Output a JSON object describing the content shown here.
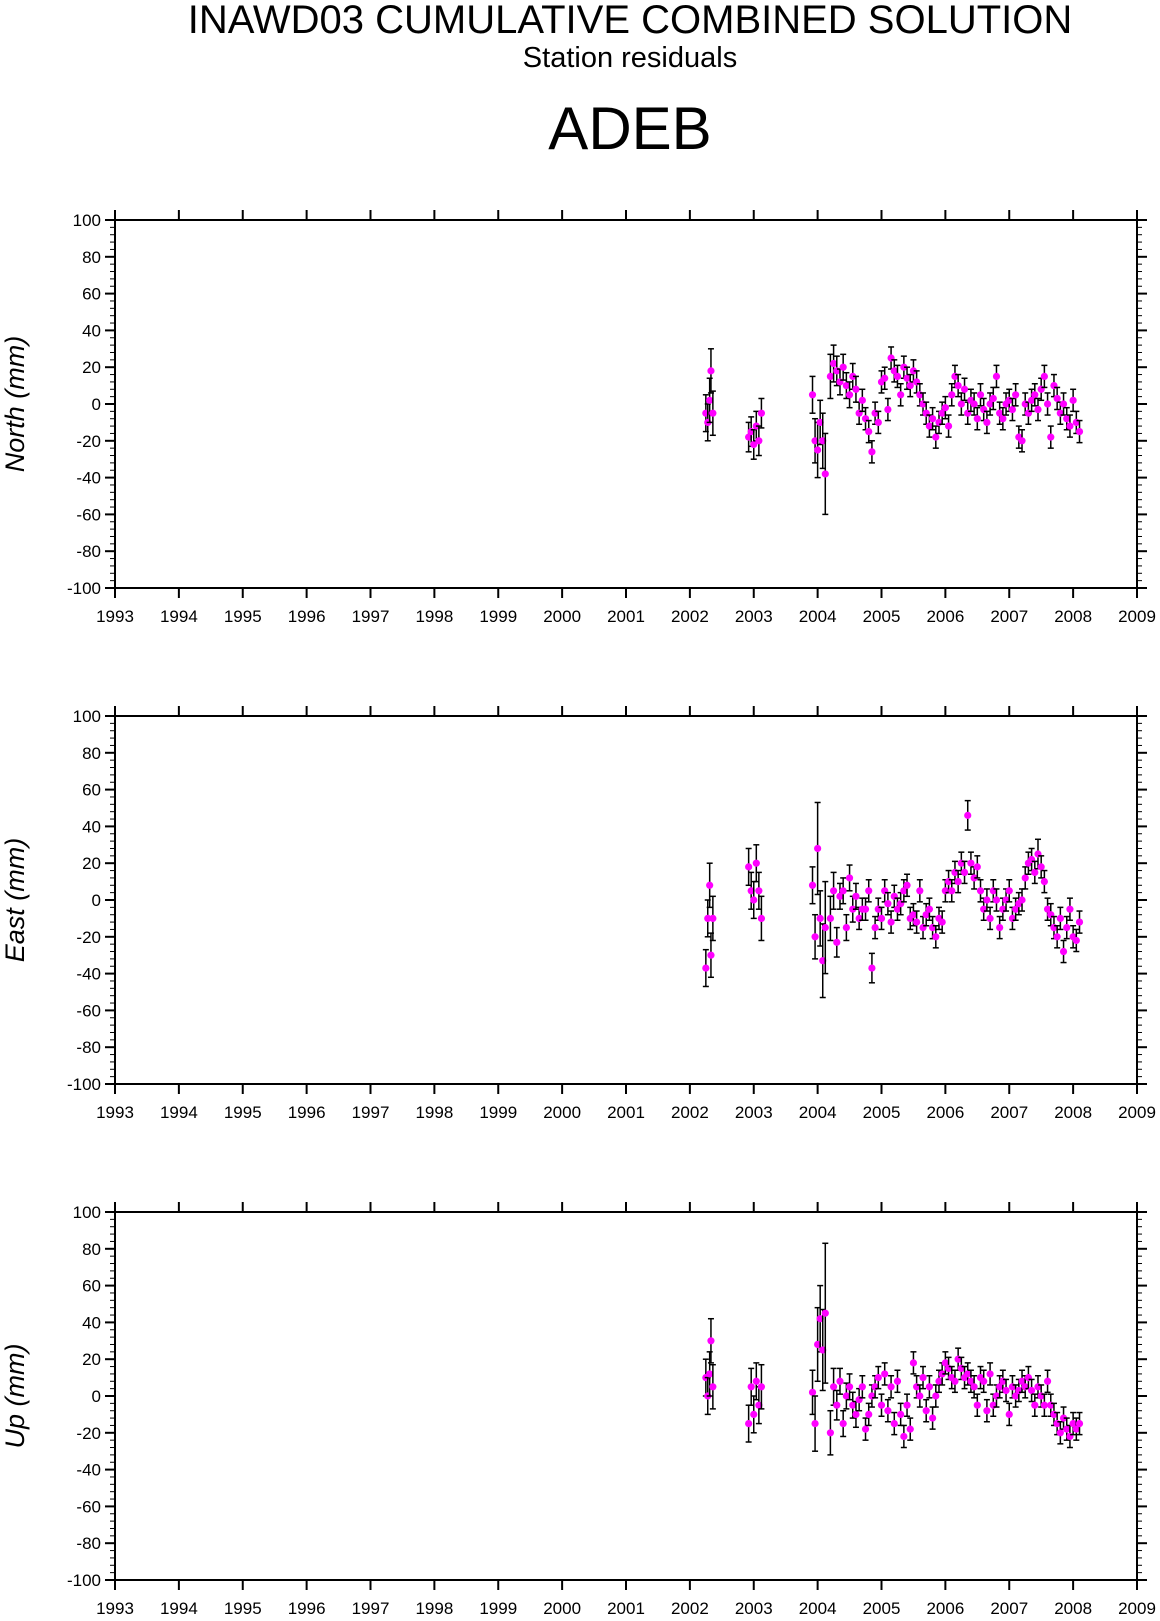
{
  "title": "INAWD03 CUMULATIVE COMBINED SOLUTION",
  "subtitle": "Station residuals",
  "station": "ADEB",
  "colors": {
    "marker": "#ff00ff",
    "errorbar": "#000000",
    "axis": "#000000"
  },
  "chart_data": [
    {
      "type": "scatter",
      "ylabel": "North (mm)",
      "xlim": [
        1993,
        2009
      ],
      "ylim": [
        -100,
        100
      ],
      "xticks": [
        "1993",
        "1994",
        "1995",
        "1996",
        "1997",
        "1998",
        "1999",
        "2000",
        "2001",
        "2002",
        "2003",
        "2004",
        "2005",
        "2006",
        "2007",
        "2008",
        "2009"
      ],
      "yticks": [
        "100",
        "80",
        "60",
        "40",
        "20",
        "0",
        "-20",
        "-40",
        "-60",
        "-80",
        "-100"
      ],
      "grid": false,
      "series": [
        {
          "x": [
            2002.25,
            2002.28,
            2002.31,
            2002.33,
            2002.36,
            2002.92,
            2002.96,
            2003.0,
            2003.04,
            2003.08,
            2003.12,
            2003.92,
            2003.96,
            2004.0,
            2004.04,
            2004.08,
            2004.12,
            2004.2,
            2004.25,
            2004.3,
            2004.35,
            2004.4,
            2004.45,
            2004.5,
            2004.55,
            2004.6,
            2004.65,
            2004.7,
            2004.75,
            2004.8,
            2004.85,
            2004.9,
            2004.95,
            2005.0,
            2005.05,
            2005.1,
            2005.15,
            2005.2,
            2005.25,
            2005.3,
            2005.35,
            2005.4,
            2005.45,
            2005.5,
            2005.55,
            2005.6,
            2005.65,
            2005.7,
            2005.75,
            2005.8,
            2005.85,
            2005.9,
            2005.95,
            2006.0,
            2006.05,
            2006.1,
            2006.15,
            2006.2,
            2006.25,
            2006.3,
            2006.35,
            2006.4,
            2006.45,
            2006.5,
            2006.55,
            2006.6,
            2006.65,
            2006.7,
            2006.75,
            2006.8,
            2006.85,
            2006.9,
            2006.95,
            2007.0,
            2007.05,
            2007.1,
            2007.15,
            2007.2,
            2007.25,
            2007.3,
            2007.35,
            2007.4,
            2007.45,
            2007.5,
            2007.55,
            2007.6,
            2007.65,
            2007.7,
            2007.75,
            2007.8,
            2007.85,
            2007.9,
            2007.95,
            2008.0,
            2008.05,
            2008.1
          ],
          "y": [
            -5,
            -10,
            2,
            18,
            -5,
            -18,
            -15,
            -22,
            -12,
            -20,
            -5,
            5,
            -20,
            -25,
            -10,
            -20,
            -38,
            15,
            22,
            18,
            12,
            20,
            10,
            5,
            15,
            8,
            -5,
            2,
            -8,
            -15,
            -26,
            -5,
            -10,
            12,
            14,
            -3,
            25,
            18,
            15,
            5,
            20,
            14,
            10,
            18,
            12,
            5,
            0,
            -5,
            -12,
            -8,
            -18,
            -10,
            -5,
            -2,
            -12,
            5,
            15,
            10,
            0,
            8,
            -5,
            2,
            0,
            -8,
            5,
            -3,
            -10,
            0,
            3,
            15,
            -5,
            -8,
            0,
            2,
            -3,
            5,
            -18,
            -20,
            0,
            -5,
            2,
            5,
            -3,
            8,
            15,
            0,
            -18,
            10,
            3,
            -5,
            0,
            -8,
            -12,
            2,
            -10,
            -15
          ],
          "yerr": [
            10,
            10,
            12,
            12,
            12,
            8,
            8,
            8,
            8,
            8,
            8,
            10,
            12,
            15,
            12,
            15,
            22,
            12,
            10,
            8,
            7,
            7,
            7,
            7,
            7,
            7,
            6,
            6,
            6,
            6,
            6,
            6,
            6,
            6,
            6,
            6,
            6,
            6,
            6,
            6,
            6,
            6,
            6,
            6,
            6,
            6,
            6,
            6,
            6,
            6,
            6,
            6,
            6,
            6,
            6,
            6,
            6,
            6,
            6,
            6,
            6,
            6,
            6,
            6,
            6,
            6,
            6,
            6,
            6,
            6,
            6,
            6,
            6,
            6,
            6,
            6,
            6,
            6,
            6,
            6,
            6,
            6,
            6,
            6,
            6,
            6,
            6,
            6,
            6,
            6,
            6,
            6,
            6,
            6,
            6,
            6
          ]
        }
      ]
    },
    {
      "type": "scatter",
      "ylabel": "East (mm)",
      "xlim": [
        1993,
        2009
      ],
      "ylim": [
        -100,
        100
      ],
      "xticks": [
        "1993",
        "1994",
        "1995",
        "1996",
        "1997",
        "1998",
        "1999",
        "2000",
        "2001",
        "2002",
        "2003",
        "2004",
        "2005",
        "2006",
        "2007",
        "2008",
        "2009"
      ],
      "yticks": [
        "100",
        "80",
        "60",
        "40",
        "20",
        "0",
        "-20",
        "-40",
        "-60",
        "-80",
        "-100"
      ],
      "grid": false,
      "series": [
        {
          "x": [
            2002.25,
            2002.28,
            2002.31,
            2002.33,
            2002.36,
            2002.92,
            2002.96,
            2003.0,
            2003.04,
            2003.08,
            2003.12,
            2003.92,
            2003.96,
            2004.0,
            2004.04,
            2004.08,
            2004.12,
            2004.2,
            2004.25,
            2004.3,
            2004.35,
            2004.4,
            2004.45,
            2004.5,
            2004.55,
            2004.6,
            2004.65,
            2004.7,
            2004.75,
            2004.8,
            2004.85,
            2004.9,
            2004.95,
            2005.0,
            2005.05,
            2005.1,
            2005.15,
            2005.2,
            2005.25,
            2005.3,
            2005.35,
            2005.4,
            2005.45,
            2005.5,
            2005.55,
            2005.6,
            2005.65,
            2005.7,
            2005.75,
            2005.8,
            2005.85,
            2005.9,
            2005.95,
            2006.0,
            2006.05,
            2006.1,
            2006.15,
            2006.2,
            2006.25,
            2006.3,
            2006.35,
            2006.4,
            2006.45,
            2006.5,
            2006.55,
            2006.6,
            2006.65,
            2006.7,
            2006.75,
            2006.8,
            2006.85,
            2006.9,
            2006.95,
            2007.0,
            2007.05,
            2007.1,
            2007.15,
            2007.2,
            2007.25,
            2007.3,
            2007.35,
            2007.4,
            2007.45,
            2007.5,
            2007.55,
            2007.6,
            2007.65,
            2007.7,
            2007.75,
            2007.8,
            2007.85,
            2007.9,
            2007.95,
            2008.0,
            2008.05,
            2008.1
          ],
          "y": [
            -37,
            -10,
            8,
            -30,
            -10,
            18,
            5,
            0,
            20,
            5,
            -10,
            8,
            -20,
            28,
            -10,
            -33,
            -15,
            -10,
            5,
            -23,
            2,
            5,
            -15,
            12,
            -5,
            2,
            -10,
            -5,
            -5,
            5,
            -37,
            -15,
            -5,
            -10,
            5,
            -2,
            -12,
            2,
            -5,
            -2,
            5,
            8,
            -10,
            -8,
            -12,
            5,
            -15,
            -8,
            -5,
            -15,
            -20,
            -10,
            -12,
            5,
            10,
            5,
            15,
            10,
            20,
            15,
            46,
            20,
            12,
            18,
            5,
            -5,
            0,
            -10,
            5,
            0,
            -15,
            -5,
            0,
            5,
            -10,
            -5,
            -2,
            0,
            12,
            20,
            22,
            15,
            25,
            18,
            10,
            -5,
            -8,
            -15,
            -20,
            -10,
            -28,
            -15,
            -5,
            -20,
            -22,
            -12
          ],
          "yerr": [
            10,
            10,
            12,
            12,
            12,
            10,
            10,
            10,
            10,
            10,
            12,
            10,
            12,
            25,
            15,
            20,
            25,
            12,
            10,
            8,
            7,
            7,
            7,
            7,
            7,
            7,
            6,
            6,
            6,
            6,
            8,
            6,
            6,
            6,
            6,
            6,
            6,
            6,
            6,
            6,
            6,
            6,
            6,
            6,
            6,
            6,
            6,
            6,
            6,
            6,
            6,
            6,
            6,
            6,
            6,
            6,
            6,
            6,
            6,
            6,
            8,
            6,
            6,
            6,
            6,
            6,
            6,
            6,
            6,
            6,
            6,
            6,
            6,
            6,
            6,
            6,
            6,
            6,
            6,
            6,
            6,
            6,
            8,
            6,
            6,
            6,
            6,
            6,
            6,
            6,
            6,
            6,
            6,
            6,
            6,
            6
          ]
        }
      ]
    },
    {
      "type": "scatter",
      "ylabel": "Up (mm)",
      "xlim": [
        1993,
        2009
      ],
      "ylim": [
        -100,
        100
      ],
      "xticks": [
        "1993",
        "1994",
        "1995",
        "1996",
        "1997",
        "1998",
        "1999",
        "2000",
        "2001",
        "2002",
        "2003",
        "2004",
        "2005",
        "2006",
        "2007",
        "2008",
        "2009"
      ],
      "yticks": [
        "100",
        "80",
        "60",
        "40",
        "20",
        "0",
        "-20",
        "-40",
        "-60",
        "-80",
        "-100"
      ],
      "grid": false,
      "series": [
        {
          "x": [
            2002.25,
            2002.28,
            2002.31,
            2002.33,
            2002.36,
            2002.92,
            2002.96,
            2003.0,
            2003.04,
            2003.08,
            2003.12,
            2003.92,
            2003.96,
            2004.0,
            2004.04,
            2004.08,
            2004.12,
            2004.2,
            2004.25,
            2004.3,
            2004.35,
            2004.4,
            2004.45,
            2004.5,
            2004.55,
            2004.6,
            2004.65,
            2004.7,
            2004.75,
            2004.8,
            2004.85,
            2004.9,
            2004.95,
            2005.0,
            2005.05,
            2005.1,
            2005.15,
            2005.2,
            2005.25,
            2005.3,
            2005.35,
            2005.4,
            2005.45,
            2005.5,
            2005.55,
            2005.6,
            2005.65,
            2005.7,
            2005.75,
            2005.8,
            2005.85,
            2005.9,
            2005.95,
            2006.0,
            2006.05,
            2006.1,
            2006.15,
            2006.2,
            2006.25,
            2006.3,
            2006.35,
            2006.4,
            2006.45,
            2006.5,
            2006.55,
            2006.6,
            2006.65,
            2006.7,
            2006.75,
            2006.8,
            2006.85,
            2006.9,
            2006.95,
            2007.0,
            2007.05,
            2007.1,
            2007.15,
            2007.2,
            2007.25,
            2007.3,
            2007.35,
            2007.4,
            2007.45,
            2007.5,
            2007.55,
            2007.6,
            2007.65,
            2007.7,
            2007.75,
            2007.8,
            2007.85,
            2007.9,
            2007.95,
            2008.0,
            2008.05,
            2008.1
          ],
          "y": [
            10,
            0,
            12,
            30,
            5,
            -15,
            5,
            -10,
            8,
            -5,
            5,
            2,
            -15,
            28,
            42,
            25,
            45,
            -20,
            5,
            -5,
            8,
            -15,
            0,
            5,
            -5,
            -10,
            -2,
            5,
            -18,
            -10,
            0,
            5,
            10,
            -5,
            12,
            -8,
            5,
            -15,
            8,
            -10,
            -22,
            -5,
            -18,
            18,
            5,
            0,
            10,
            -8,
            5,
            -12,
            0,
            8,
            12,
            18,
            15,
            10,
            8,
            20,
            15,
            10,
            12,
            8,
            5,
            -5,
            10,
            8,
            -8,
            12,
            -5,
            0,
            5,
            8,
            3,
            -10,
            5,
            0,
            3,
            8,
            5,
            10,
            3,
            -5,
            5,
            0,
            -5,
            8,
            -5,
            -10,
            -15,
            -20,
            -12,
            -18,
            -22,
            -15,
            -18,
            -15
          ],
          "yerr": [
            10,
            10,
            12,
            12,
            12,
            10,
            10,
            10,
            10,
            10,
            12,
            12,
            15,
            20,
            18,
            22,
            38,
            12,
            10,
            8,
            7,
            7,
            7,
            7,
            7,
            7,
            6,
            6,
            6,
            6,
            6,
            6,
            6,
            6,
            6,
            6,
            6,
            6,
            6,
            6,
            6,
            6,
            6,
            6,
            6,
            6,
            6,
            6,
            6,
            6,
            6,
            6,
            6,
            6,
            6,
            6,
            6,
            6,
            6,
            6,
            6,
            6,
            6,
            6,
            6,
            6,
            6,
            6,
            6,
            6,
            6,
            6,
            6,
            6,
            6,
            6,
            6,
            6,
            6,
            6,
            6,
            6,
            6,
            6,
            6,
            6,
            6,
            6,
            6,
            6,
            6,
            6,
            6,
            6,
            6,
            6
          ]
        }
      ]
    }
  ]
}
